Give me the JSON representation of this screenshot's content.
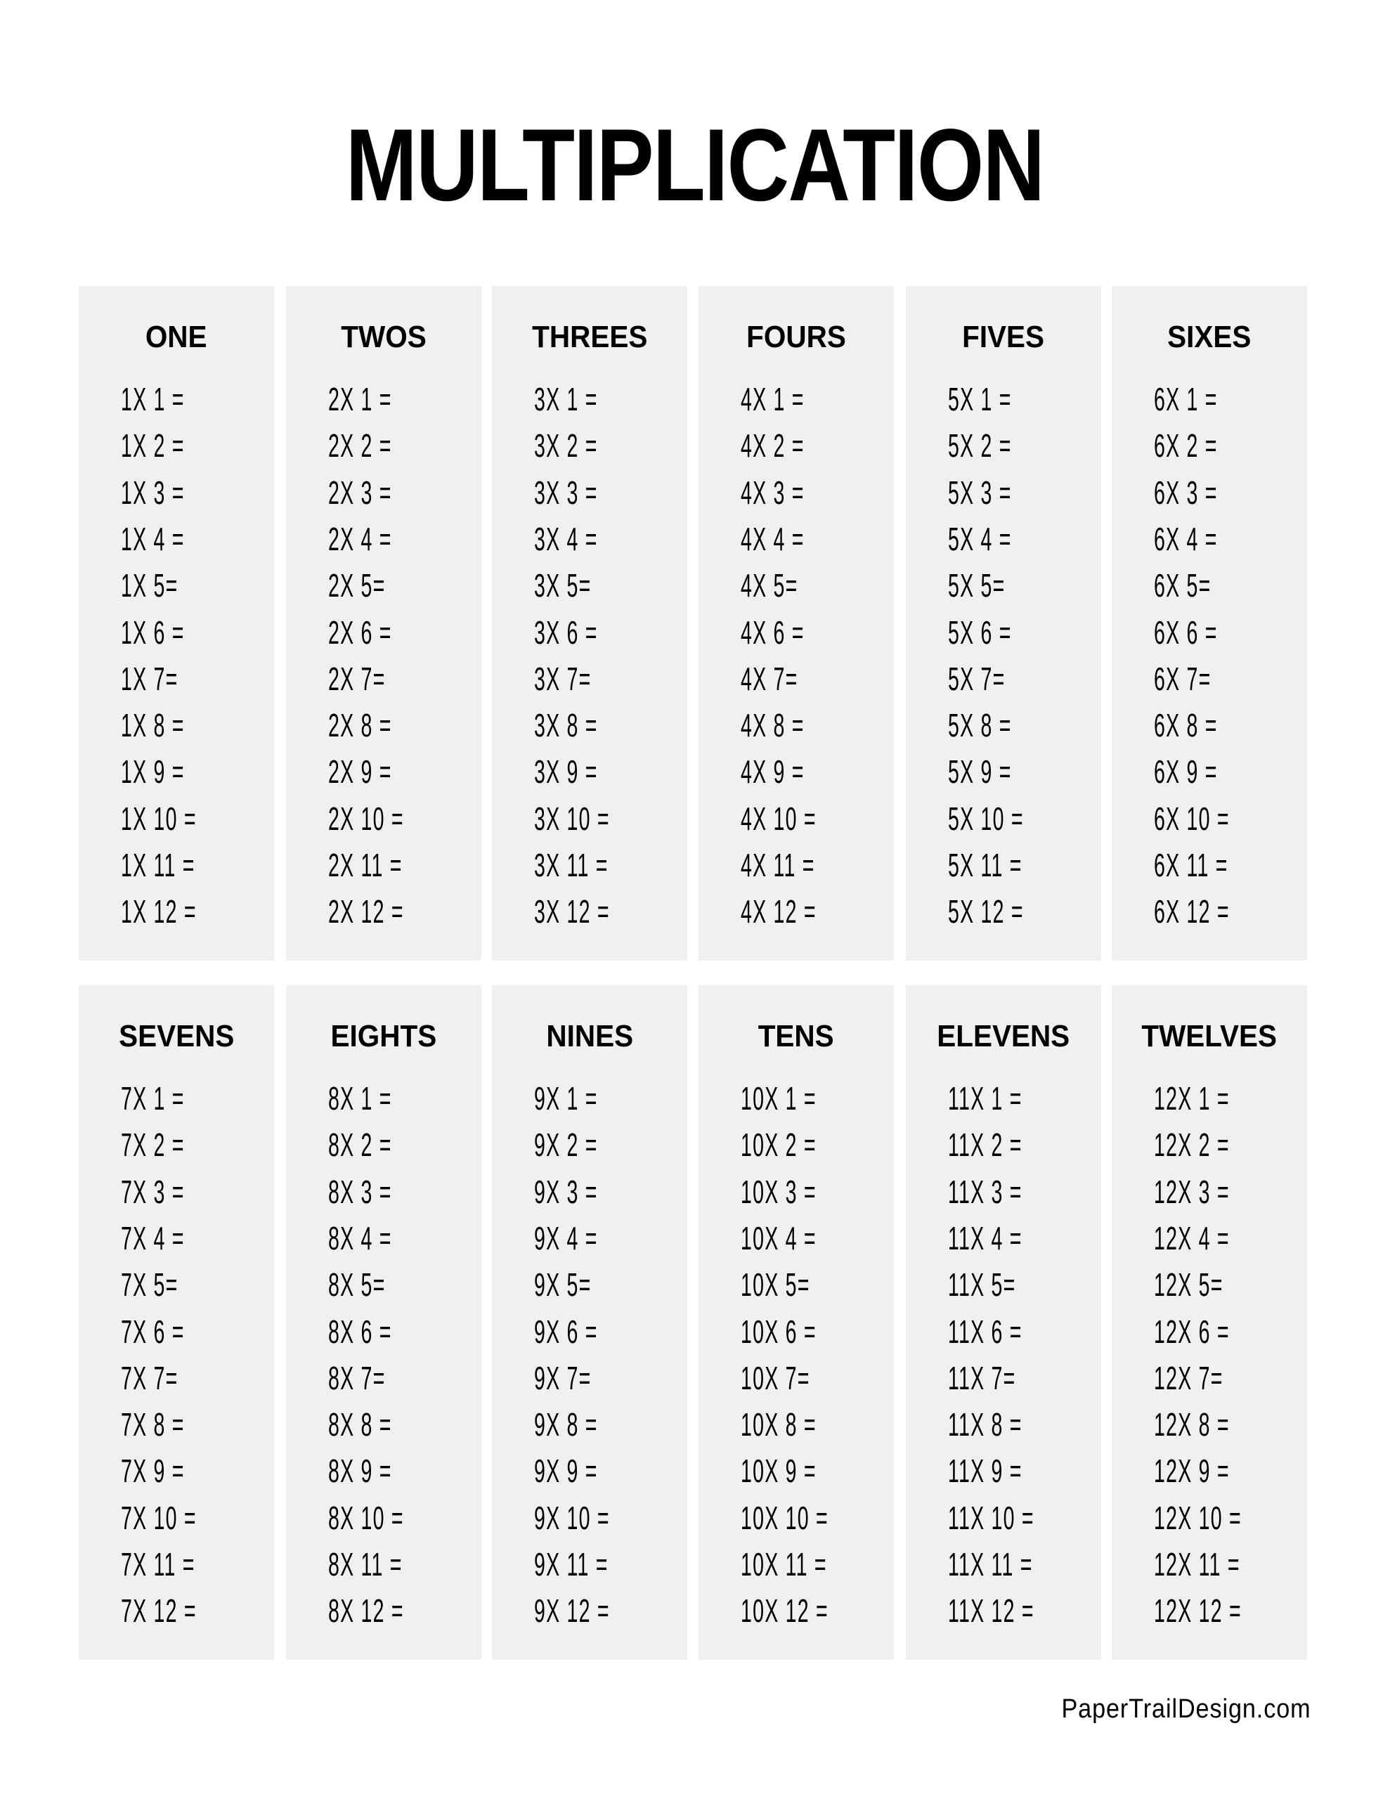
{
  "title": "MULTIPLICATION",
  "footer": "PaperTrailDesign.com",
  "panel_color": "#f0f0f0",
  "panels": [
    {
      "title": "ONE",
      "rows": [
        "1X 1 =",
        "1X 2 =",
        "1X 3 =",
        "1X 4 =",
        "1X 5=",
        "1X 6 =",
        "1X 7=",
        "1X 8 =",
        "1X 9 =",
        "1X 10 =",
        "1X 11 =",
        "1X 12 ="
      ]
    },
    {
      "title": "TWOS",
      "rows": [
        "2X 1 =",
        "2X 2 =",
        "2X 3 =",
        "2X 4 =",
        "2X 5=",
        "2X 6 =",
        "2X 7=",
        "2X 8 =",
        "2X 9 =",
        "2X 10 =",
        "2X 11 =",
        "2X 12 ="
      ]
    },
    {
      "title": "THREES",
      "rows": [
        "3X 1 =",
        "3X 2 =",
        "3X 3 =",
        "3X 4 =",
        "3X 5=",
        "3X 6 =",
        "3X 7=",
        "3X 8 =",
        "3X 9 =",
        "3X 10 =",
        "3X 11 =",
        "3X 12 ="
      ]
    },
    {
      "title": "FOURS",
      "rows": [
        "4X 1 =",
        "4X 2 =",
        "4X 3 =",
        "4X 4 =",
        "4X 5=",
        "4X 6 =",
        "4X 7=",
        "4X 8 =",
        "4X 9 =",
        "4X 10 =",
        "4X 11 =",
        "4X 12 ="
      ]
    },
    {
      "title": "FIVES",
      "rows": [
        "5X 1 =",
        "5X 2 =",
        "5X 3 =",
        "5X 4 =",
        "5X 5=",
        "5X 6 =",
        "5X 7=",
        "5X 8 =",
        "5X 9 =",
        "5X 10 =",
        "5X 11 =",
        "5X 12 ="
      ]
    },
    {
      "title": "SIXES",
      "rows": [
        "6X 1 =",
        "6X 2 =",
        "6X 3 =",
        "6X 4 =",
        "6X 5=",
        "6X 6 =",
        "6X 7=",
        "6X 8 =",
        "6X 9 =",
        "6X 10 =",
        "6X 11 =",
        "6X 12 ="
      ]
    },
    {
      "title": "SEVENS",
      "rows": [
        "7X 1 =",
        "7X 2 =",
        "7X 3 =",
        "7X 4 =",
        "7X 5=",
        "7X 6 =",
        "7X 7=",
        "7X 8 =",
        "7X 9 =",
        "7X 10 =",
        "7X 11 =",
        "7X 12 ="
      ]
    },
    {
      "title": "EIGHTS",
      "rows": [
        "8X 1 =",
        "8X 2 =",
        "8X 3 =",
        "8X 4 =",
        "8X 5=",
        "8X 6 =",
        "8X 7=",
        "8X 8 =",
        "8X 9 =",
        "8X 10 =",
        "8X 11 =",
        "8X 12 ="
      ]
    },
    {
      "title": "NINES",
      "rows": [
        "9X 1 =",
        "9X 2 =",
        "9X 3 =",
        "9X 4 =",
        "9X 5=",
        "9X 6 =",
        "9X 7=",
        "9X 8 =",
        "9X 9 =",
        "9X 10 =",
        "9X 11 =",
        "9X 12 ="
      ]
    },
    {
      "title": "TENS",
      "rows": [
        "10X 1 =",
        "10X 2 =",
        "10X 3 =",
        "10X 4 =",
        "10X 5=",
        "10X 6 =",
        "10X 7=",
        "10X 8 =",
        "10X 9 =",
        "10X 10 =",
        "10X 11 =",
        "10X 12 ="
      ]
    },
    {
      "title": "ELEVENS",
      "rows": [
        "11X 1 =",
        "11X 2 =",
        "11X 3 =",
        "11X 4 =",
        "11X 5=",
        "11X 6 =",
        "11X 7=",
        "11X 8 =",
        "11X 9 =",
        "11X 10 =",
        "11X 11 =",
        "11X 12 ="
      ]
    },
    {
      "title": "TWELVES",
      "rows": [
        "12X 1 =",
        "12X 2 =",
        "12X 3 =",
        "12X 4 =",
        "12X 5=",
        "12X 6 =",
        "12X 7=",
        "12X 8 =",
        "12X 9 =",
        "12X 10 =",
        "12X 11 =",
        "12X 12 ="
      ]
    }
  ]
}
